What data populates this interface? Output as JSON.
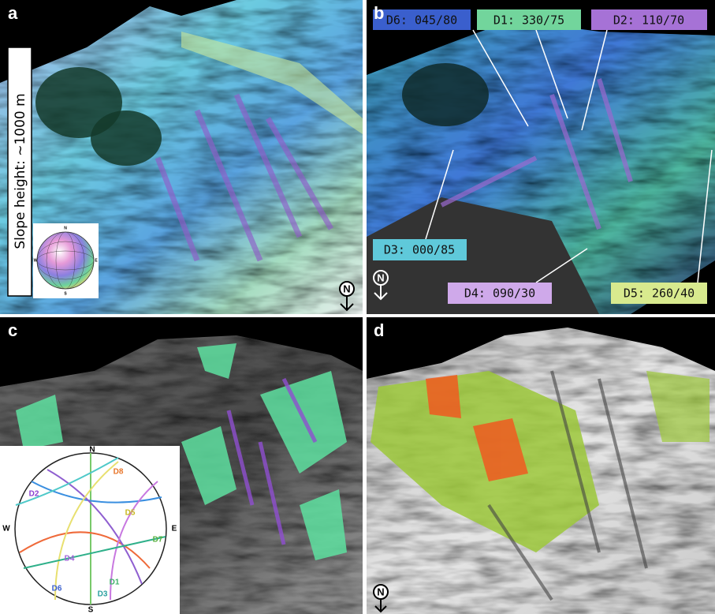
{
  "panels": [
    {
      "label": "a",
      "annotation": "Slope height: ~1000 m",
      "stereonet_labels": [
        "N",
        "E",
        "S",
        "W"
      ],
      "north_arrow": "N"
    },
    {
      "label": "b",
      "annotations": [
        "D6: 045/80",
        "D1: 330/75",
        "D2: 110/70",
        "D3: 000/85",
        "D4: 090/30",
        "D5: 260/40"
      ],
      "north_arrow": "N"
    },
    {
      "label": "c",
      "stereonet_labels": [
        "N",
        "E",
        "S",
        "W",
        "D8",
        "D2",
        "D5",
        "D7",
        "D4",
        "D6",
        "D3",
        "D1"
      ]
    },
    {
      "label": "d",
      "north_arrow": "N"
    }
  ]
}
